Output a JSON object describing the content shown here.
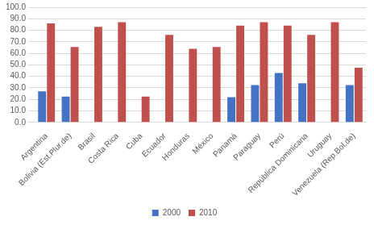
{
  "chart_data": {
    "type": "bar",
    "categories": [
      "Argentina",
      "Bolivia (Est.Plur.de)",
      "Brasil",
      "Costa Rica",
      "Cuba",
      "Ecuador",
      "Honduras",
      "México",
      "Panamá",
      "Paraguay",
      "Perú",
      "República Dominicana",
      "Uruguay",
      "Venezuela (Rep.Bol.de)"
    ],
    "series": [
      {
        "name": "2000",
        "color": "#4472c4",
        "values": [
          27.0,
          22.5,
          null,
          null,
          null,
          null,
          null,
          null,
          22.0,
          32.5,
          43.0,
          34.0,
          null,
          32.5
        ]
      },
      {
        "name": "2010",
        "color": "#c0504d",
        "values": [
          86.0,
          65.5,
          83.0,
          87.0,
          22.5,
          76.0,
          64.0,
          65.5,
          84.0,
          87.0,
          84.0,
          76.0,
          87.0,
          47.5
        ]
      }
    ],
    "ylim": [
      0,
      100
    ],
    "yticks": [
      {
        "value": 0,
        "label": "0.0"
      },
      {
        "value": 10,
        "label": "10.0"
      },
      {
        "value": 20,
        "label": "20.0"
      },
      {
        "value": 30,
        "label": "30.0"
      },
      {
        "value": 40,
        "label": "40.0"
      },
      {
        "value": 50,
        "label": "50.0"
      },
      {
        "value": 60,
        "label": "60.0"
      },
      {
        "value": 70,
        "label": "70.0"
      },
      {
        "value": 80,
        "label": "80.0"
      },
      {
        "value": 90,
        "label": "90.0"
      },
      {
        "value": 100,
        "label": "100.0"
      }
    ],
    "grid": true,
    "legend": "bottom"
  }
}
